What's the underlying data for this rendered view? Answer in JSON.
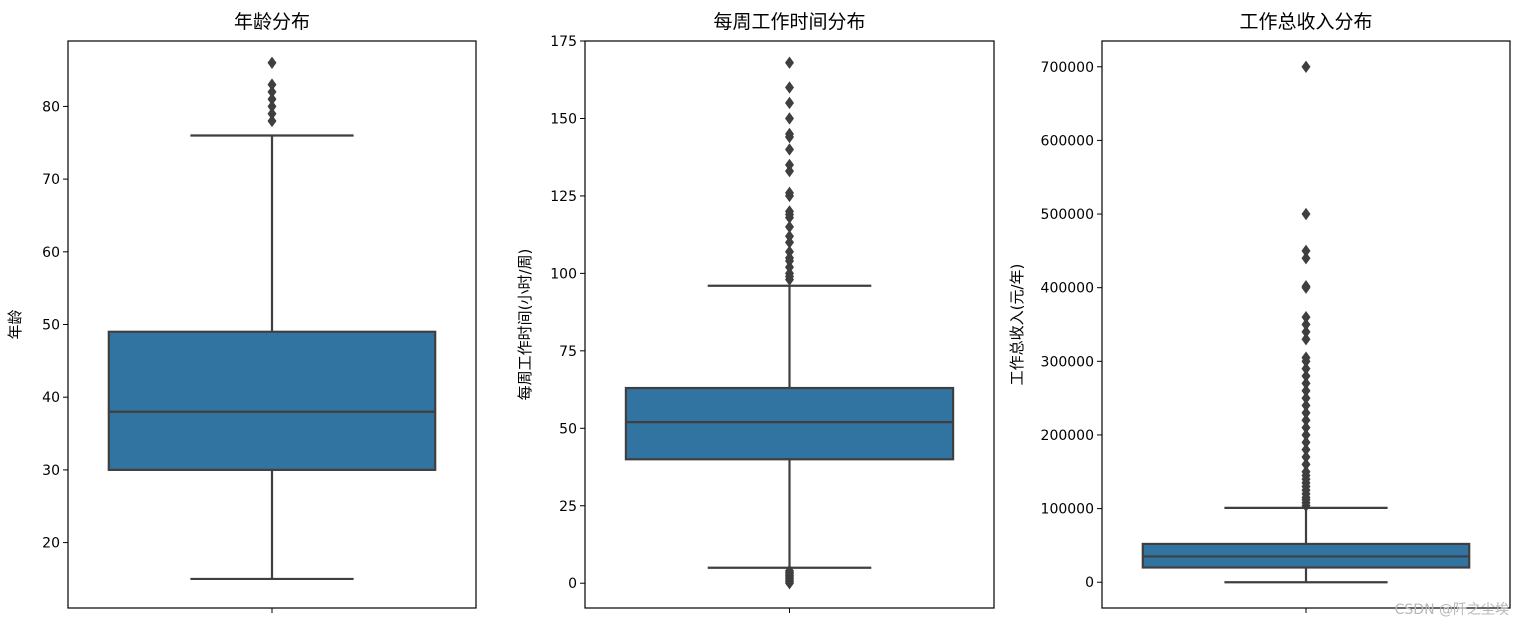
{
  "chart_data": [
    {
      "type": "box",
      "title": "年龄分布",
      "ylabel": "年龄",
      "ylim": [
        11,
        89
      ],
      "yticks": [
        20,
        30,
        40,
        50,
        60,
        70,
        80
      ],
      "box": {
        "whisker_low": 15,
        "q1": 30,
        "median": 38,
        "q3": 49,
        "whisker_high": 76
      },
      "outliers": [
        78,
        79,
        80,
        81,
        82,
        83,
        86
      ],
      "color": "#3274a1"
    },
    {
      "type": "box",
      "title": "每周工作时间分布",
      "ylabel": "每周工作时间(小时/周)",
      "ylim": [
        -8,
        175
      ],
      "yticks": [
        0,
        25,
        50,
        75,
        100,
        125,
        150,
        175
      ],
      "box": {
        "whisker_low": 5,
        "q1": 40,
        "median": 52,
        "q3": 63,
        "whisker_high": 96
      },
      "outliers": [
        0,
        0.5,
        1,
        1.5,
        2,
        2.5,
        3,
        3.5,
        4,
        98,
        99,
        100,
        102,
        104,
        105,
        107,
        110,
        112,
        115,
        118,
        119,
        120,
        125,
        126,
        133,
        135,
        140,
        144,
        145,
        150,
        155,
        160,
        168
      ],
      "color": "#3274a1"
    },
    {
      "type": "box",
      "title": "工作总收入分布",
      "ylabel": "工作总收入(元/年)",
      "ylim": [
        -35000,
        735000
      ],
      "yticks": [
        0,
        100000,
        200000,
        300000,
        400000,
        500000,
        600000,
        700000
      ],
      "box": {
        "whisker_low": 0,
        "q1": 20000,
        "median": 35000,
        "q3": 52000,
        "whisker_high": 101000
      },
      "outliers": [
        104000,
        108000,
        112000,
        115000,
        120000,
        125000,
        130000,
        135000,
        140000,
        145000,
        150000,
        160000,
        170000,
        180000,
        190000,
        200000,
        210000,
        220000,
        230000,
        240000,
        250000,
        260000,
        270000,
        280000,
        290000,
        300000,
        305000,
        330000,
        340000,
        350000,
        360000,
        400000,
        402000,
        440000,
        450000,
        500000,
        700000
      ],
      "color": "#3274a1"
    }
  ],
  "watermark": "CSDN @阡之尘埃"
}
